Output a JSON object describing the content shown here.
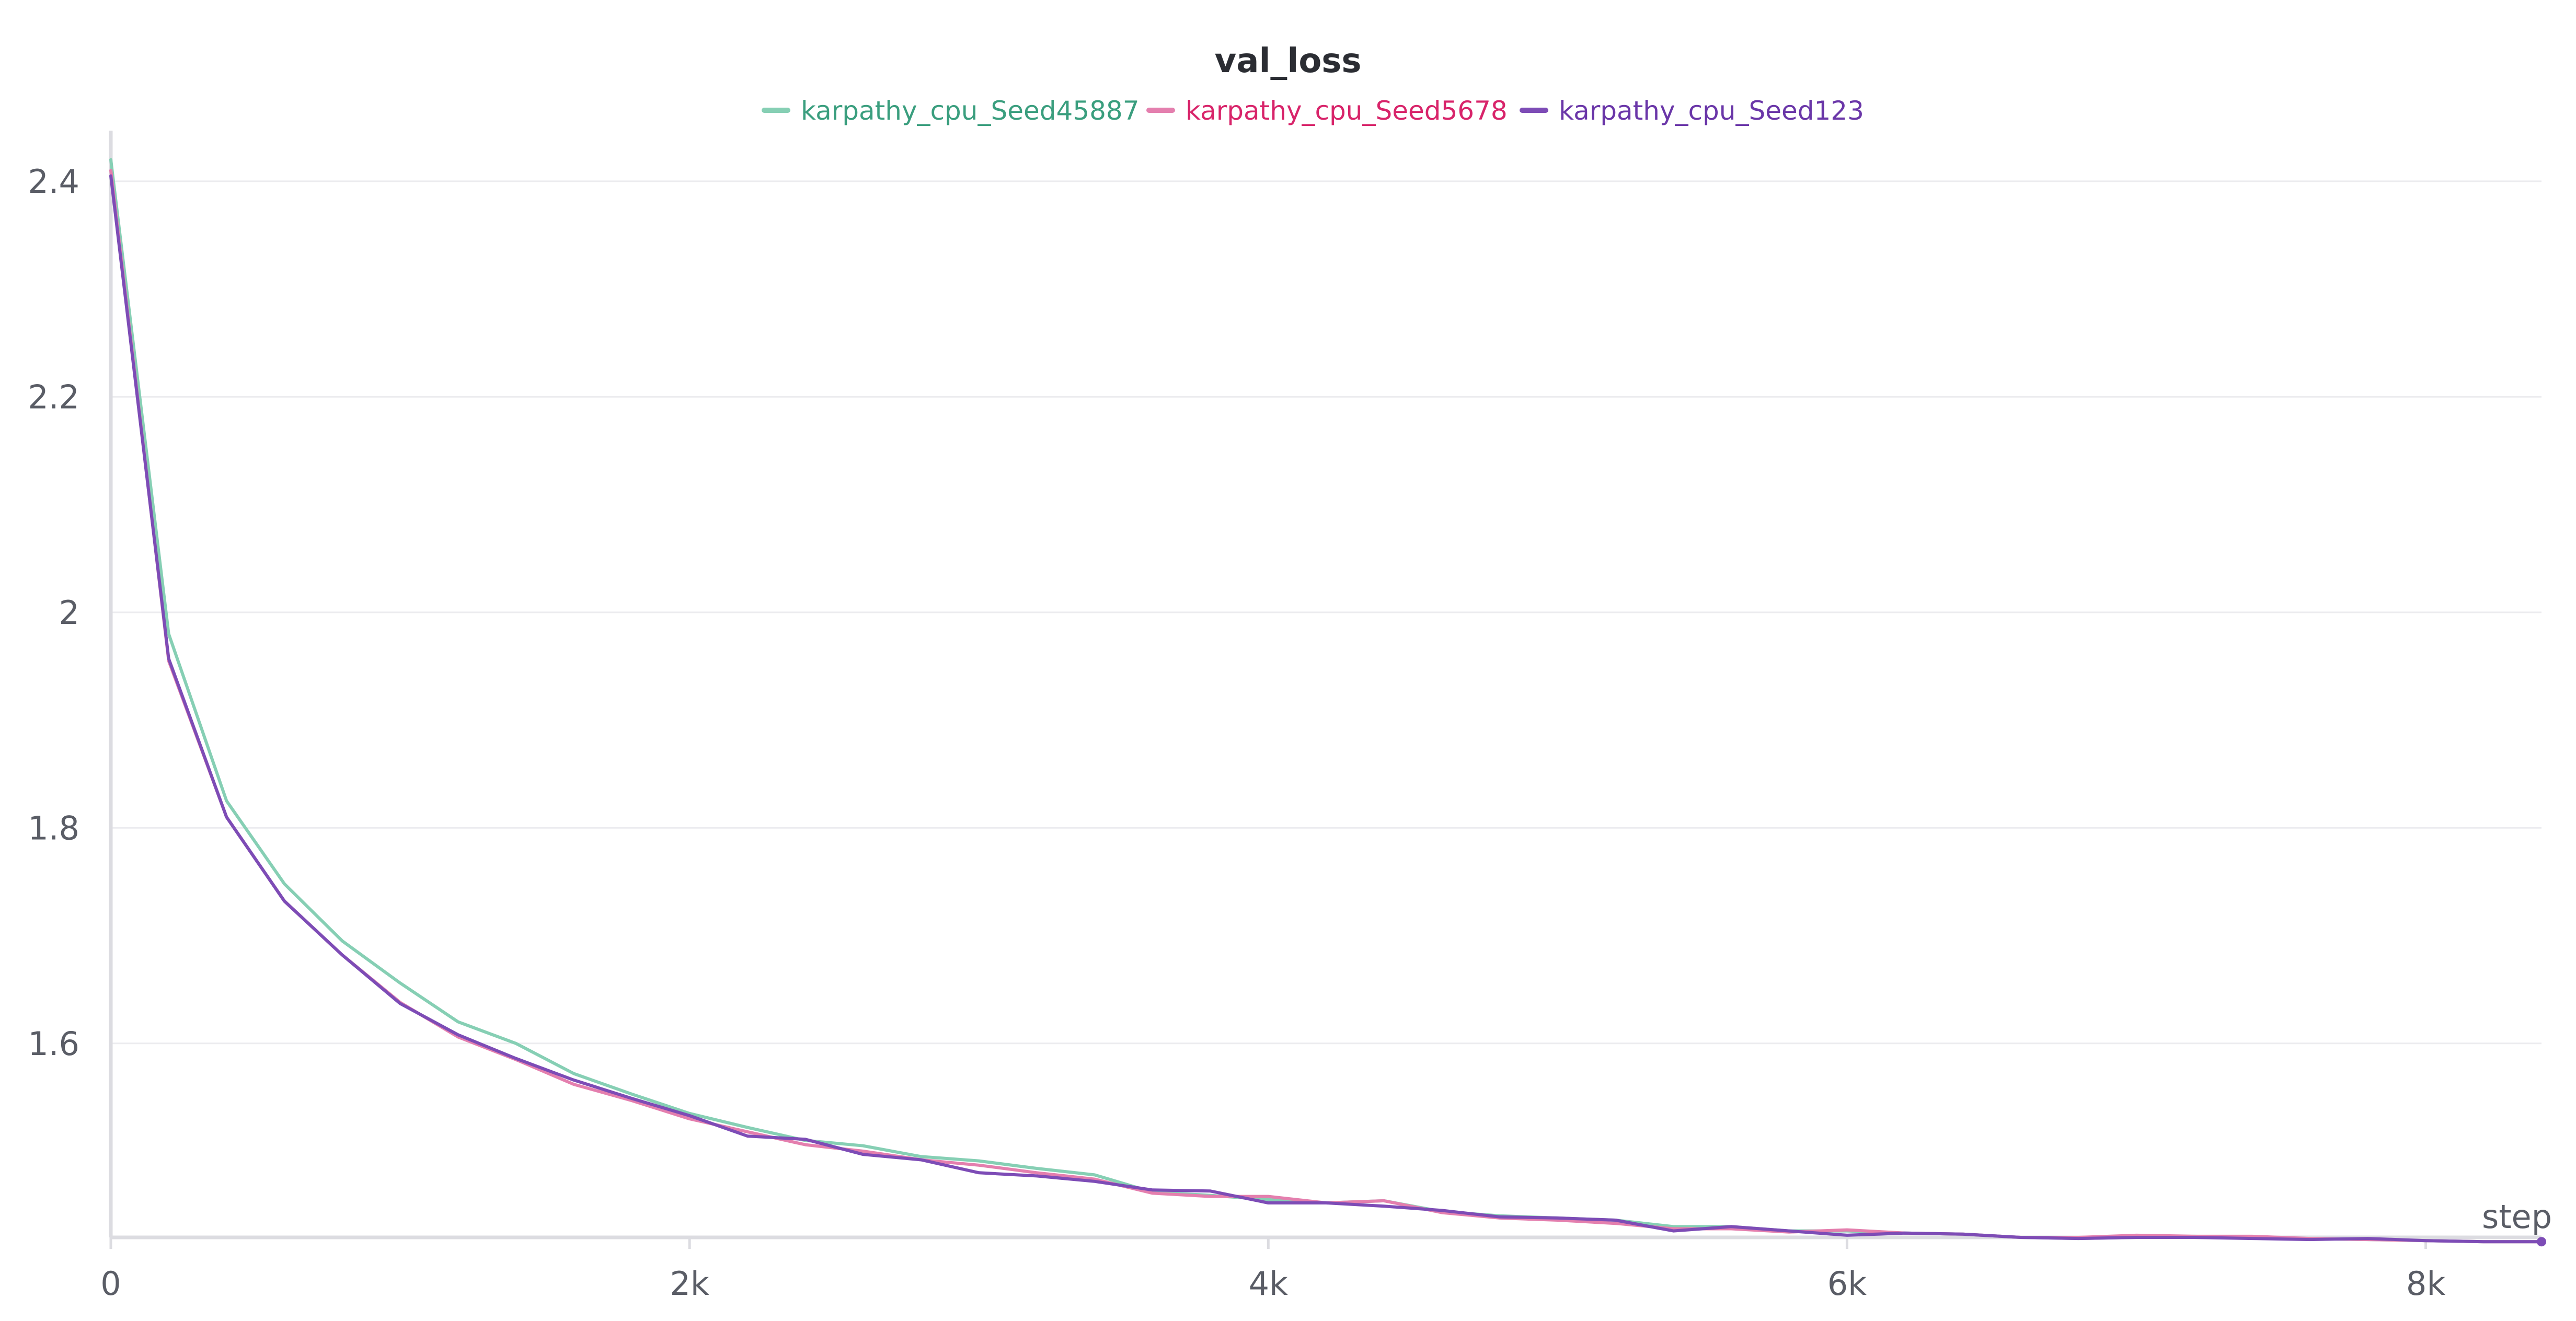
{
  "chart_data": {
    "type": "line",
    "title": "val_loss",
    "xlabel": "step",
    "ylabel": "",
    "xlim": [
      0,
      8400
    ],
    "ylim": [
      1.42,
      2.43
    ],
    "x_ticks": [
      0,
      2000,
      4000,
      6000,
      8000
    ],
    "x_tick_labels": [
      "0",
      "2k",
      "4k",
      "6k",
      "8k"
    ],
    "y_ticks": [
      1.6,
      1.8,
      2.0,
      2.2,
      2.4
    ],
    "y_tick_labels": [
      "1.6",
      "1.8",
      "2",
      "2.2",
      "2.4"
    ],
    "grid": true,
    "legend_position": "top-center",
    "series": [
      {
        "name": "karpathy_cpu_Seed45887",
        "color": "#86cfb4",
        "label_color": "#3a9e7e",
        "x": [
          0,
          200,
          400,
          600,
          800,
          1000,
          1200,
          1400,
          1600,
          1800,
          2000,
          2200,
          2400,
          2600,
          2800,
          3000,
          3200,
          3400,
          3600,
          3800,
          4000,
          4200,
          4400,
          4600,
          4800,
          5000,
          5200,
          5400,
          5600,
          5800,
          6000,
          6200,
          6400,
          6600,
          6800,
          7000,
          7200,
          7400,
          7600,
          7800,
          8000,
          8200,
          8400
        ],
        "y": [
          2.42,
          1.98,
          1.825,
          1.748,
          1.695,
          1.656,
          1.62,
          1.6,
          1.572,
          1.553,
          1.535,
          1.522,
          1.51,
          1.505,
          1.495,
          1.491,
          1.484,
          1.478,
          1.462,
          1.459,
          1.455,
          1.452,
          1.454,
          1.444,
          1.44,
          1.438,
          1.436,
          1.43,
          1.43,
          1.426,
          1.426,
          1.424,
          1.423,
          1.42,
          1.419,
          1.42,
          1.421,
          1.42,
          1.419,
          1.418,
          1.417,
          1.416,
          1.416
        ]
      },
      {
        "name": "karpathy_cpu_Seed5678",
        "color": "#e47fae",
        "label_color": "#d8246a",
        "x": [
          0,
          200,
          400,
          600,
          800,
          1000,
          1200,
          1400,
          1600,
          1800,
          2000,
          2200,
          2400,
          2600,
          2800,
          3000,
          3200,
          3400,
          3600,
          3800,
          4000,
          4200,
          4400,
          4600,
          4800,
          5000,
          5200,
          5400,
          5600,
          5800,
          6000,
          6200,
          6400,
          6600,
          6800,
          7000,
          7200,
          7400,
          7600,
          7800,
          8000,
          8200,
          8400
        ],
        "y": [
          2.41,
          1.955,
          1.81,
          1.732,
          1.682,
          1.638,
          1.606,
          1.585,
          1.562,
          1.547,
          1.53,
          1.518,
          1.506,
          1.5,
          1.492,
          1.487,
          1.48,
          1.474,
          1.461,
          1.458,
          1.458,
          1.452,
          1.454,
          1.443,
          1.438,
          1.436,
          1.433,
          1.428,
          1.428,
          1.425,
          1.427,
          1.424,
          1.423,
          1.42,
          1.42,
          1.422,
          1.421,
          1.421,
          1.419,
          1.418,
          1.417,
          1.416,
          1.416
        ]
      },
      {
        "name": "karpathy_cpu_Seed123",
        "color": "#7d4cb6",
        "label_color": "#6a36a8",
        "x": [
          0,
          200,
          400,
          600,
          800,
          1000,
          1200,
          1400,
          1600,
          1800,
          2000,
          2200,
          2400,
          2600,
          2800,
          3000,
          3200,
          3400,
          3600,
          3800,
          4000,
          4200,
          4400,
          4600,
          4800,
          5000,
          5200,
          5400,
          5600,
          5800,
          6000,
          6200,
          6400,
          6600,
          6800,
          7000,
          7200,
          7400,
          7600,
          7800,
          8000,
          8200,
          8400
        ],
        "y": [
          2.405,
          1.957,
          1.81,
          1.732,
          1.682,
          1.637,
          1.608,
          1.586,
          1.566,
          1.549,
          1.533,
          1.514,
          1.511,
          1.497,
          1.492,
          1.48,
          1.477,
          1.472,
          1.464,
          1.463,
          1.452,
          1.452,
          1.449,
          1.445,
          1.439,
          1.438,
          1.436,
          1.426,
          1.43,
          1.426,
          1.422,
          1.424,
          1.423,
          1.42,
          1.419,
          1.42,
          1.42,
          1.419,
          1.418,
          1.419,
          1.417,
          1.416,
          1.416
        ]
      }
    ]
  }
}
